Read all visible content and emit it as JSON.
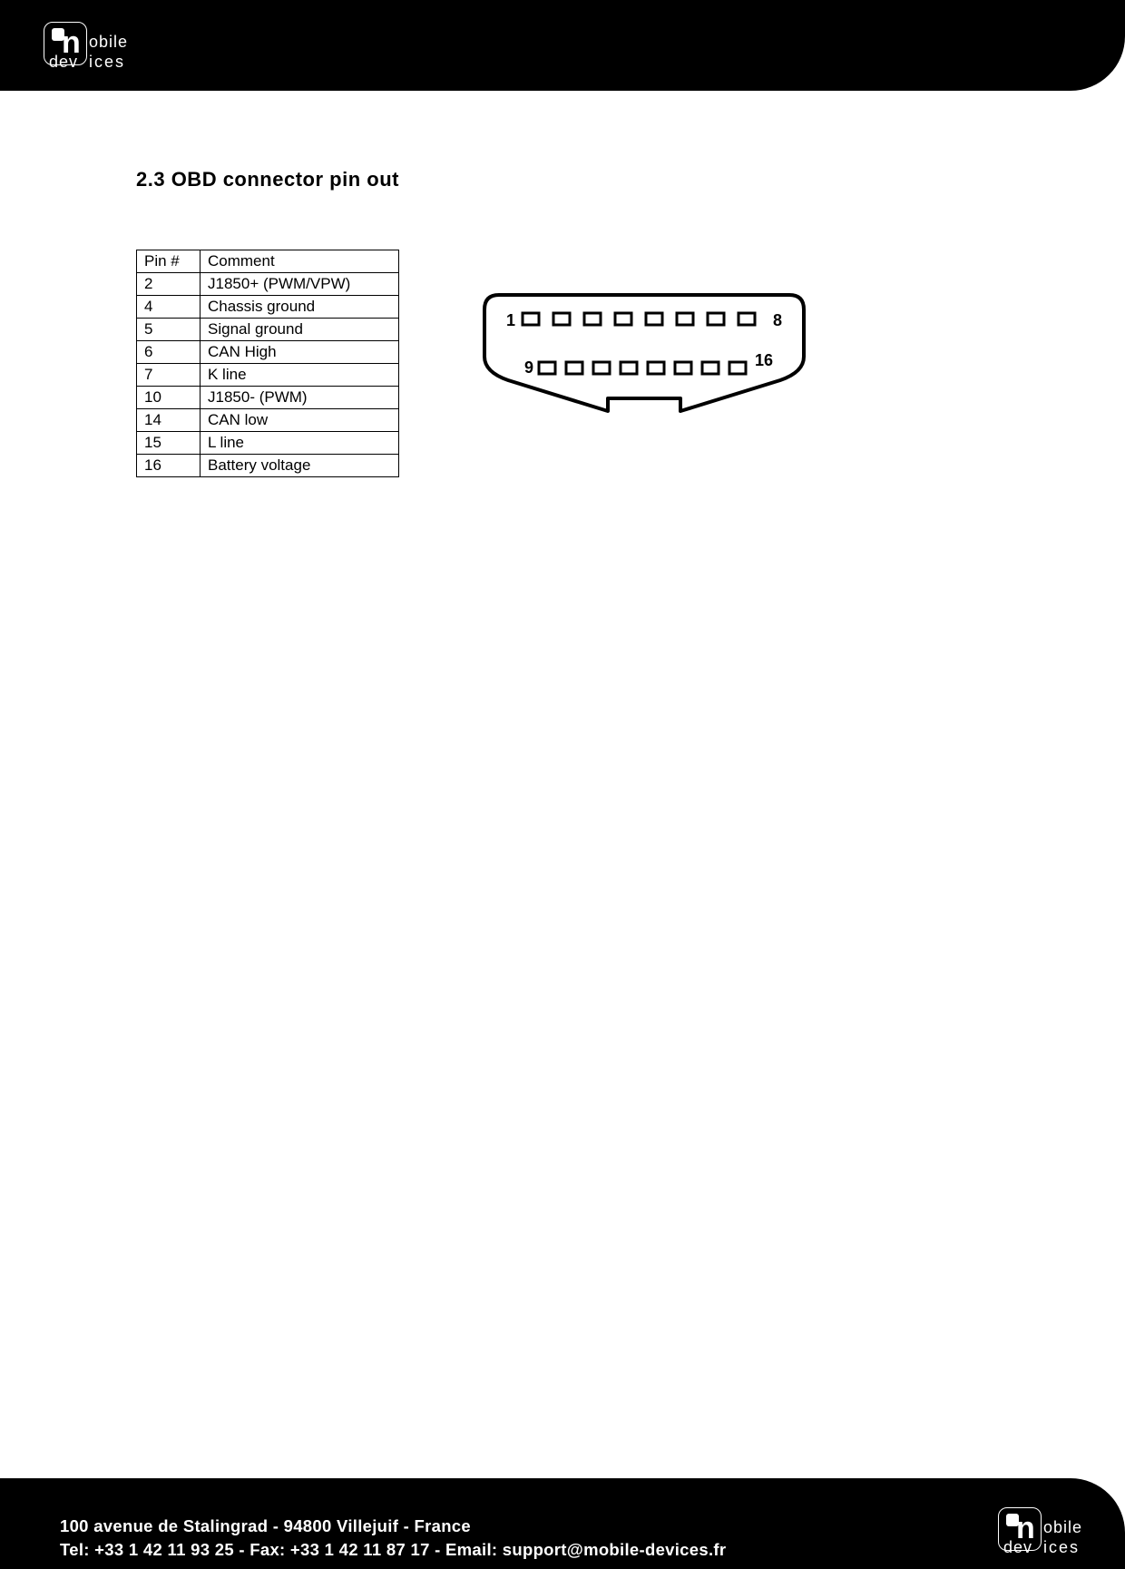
{
  "brand": {
    "name_top": "obile",
    "name_bottom_left": "dev",
    "name_bottom_right": "ices",
    "logo_n": "n"
  },
  "section": {
    "title": "2.3 OBD connector pin out"
  },
  "table": {
    "headers": {
      "pin": "Pin #",
      "comment": "Comment"
    },
    "rows": [
      {
        "pin": "2",
        "comment": "J1850+ (PWM/VPW)"
      },
      {
        "pin": "4",
        "comment": "Chassis ground"
      },
      {
        "pin": "5",
        "comment": "Signal ground"
      },
      {
        "pin": "6",
        "comment": "CAN High"
      },
      {
        "pin": "7",
        "comment": "K line"
      },
      {
        "pin": "10",
        "comment": "J1850- (PWM)"
      },
      {
        "pin": "14",
        "comment": "CAN low"
      },
      {
        "pin": "15",
        "comment": "L line"
      },
      {
        "pin": "16",
        "comment": "Battery voltage"
      }
    ]
  },
  "connector": {
    "type": "obd2-female",
    "labels": {
      "top_left": "1",
      "top_right": "8",
      "bottom_left": "9",
      "bottom_right": "16"
    },
    "stroke_color": "#000000",
    "stroke_width": 4,
    "pin_rows": 2,
    "pins_per_row": 8
  },
  "footer": {
    "line1": "100 avenue de Stalingrad - 94800 Villejuif - France",
    "line2": "Tel: +33 1 42 11 93 25 - Fax: +33 1 42 11 87 17 - Email: support@mobile-devices.fr"
  },
  "colors": {
    "header_bg": "#000000",
    "footer_bg": "#000000",
    "page_bg": "#ffffff",
    "accent": "#4a6fb3",
    "text": "#000000",
    "footer_text": "#ffffff"
  }
}
